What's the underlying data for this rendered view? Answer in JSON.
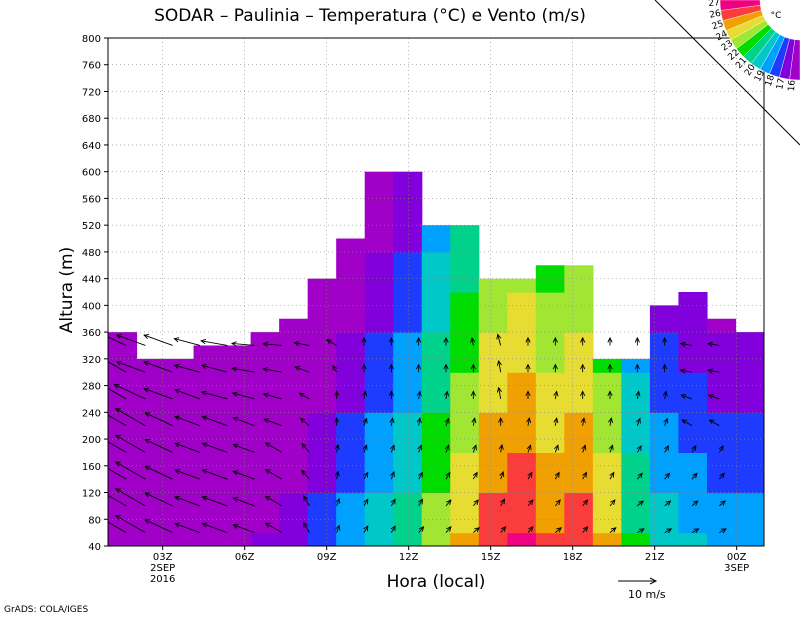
{
  "chart_data": {
    "type": "heatmap",
    "title": "SODAR – Paulinia – Temperatura (°C) e Vento (m/s)",
    "xlabel": "Hora (local)",
    "ylabel": "Altura (m)",
    "ylim": [
      40,
      800
    ],
    "xlim_hours": [
      0,
      24
    ],
    "y_ticks": [
      40,
      80,
      120,
      160,
      200,
      240,
      280,
      320,
      360,
      400,
      440,
      480,
      520,
      560,
      600,
      640,
      680,
      720,
      760,
      800
    ],
    "y_tick_labels": [
      "40",
      "80",
      "120",
      "160",
      "200",
      "240",
      "280",
      "320",
      "360",
      "400",
      "440",
      "480",
      "520",
      "560",
      "600",
      "640",
      "680",
      "720",
      "760",
      "800"
    ],
    "x_ticks": [
      {
        "hour": 2,
        "label": "03Z",
        "sub": [
          "2SEP",
          "2016"
        ]
      },
      {
        "hour": 5,
        "label": "06Z",
        "sub": []
      },
      {
        "hour": 8,
        "label": "09Z",
        "sub": []
      },
      {
        "hour": 11,
        "label": "12Z",
        "sub": []
      },
      {
        "hour": 14,
        "label": "15Z",
        "sub": []
      },
      {
        "hour": 17,
        "label": "18Z",
        "sub": []
      },
      {
        "hour": 20,
        "label": "21Z",
        "sub": []
      },
      {
        "hour": 23,
        "label": "00Z",
        "sub": [
          "3SEP"
        ]
      }
    ],
    "grid": true,
    "data_top_m": [
      360,
      320,
      320,
      340,
      340,
      360,
      380,
      440,
      500,
      600,
      600,
      520,
      520,
      440,
      440,
      460,
      460,
      320,
      320,
      400,
      420,
      380,
      360
    ],
    "temperature_columns": [
      16,
      16,
      16,
      16,
      16.5,
      17,
      17.5,
      18.5,
      19.5,
      20.5,
      21.5,
      23.5,
      25,
      26.5,
      27,
      26,
      26.5,
      25,
      22,
      20.5,
      20,
      19.5,
      19.5
    ],
    "vertical_temp_gradient": -0.008,
    "wind_vectors": [
      {
        "hour": 0.3,
        "speed": [
          9,
          9,
          9,
          9,
          9,
          9,
          9,
          9
        ],
        "dir": [
          300,
          300,
          300,
          300,
          300,
          300,
          300,
          295
        ]
      },
      {
        "hour": 1.0,
        "speed": [
          9,
          9,
          9,
          9,
          9,
          9,
          8,
          8
        ],
        "dir": [
          300,
          300,
          300,
          300,
          300,
          295,
          290,
          290
        ]
      },
      {
        "hour": 2.0,
        "speed": [
          8,
          8,
          8,
          8,
          8,
          8,
          8,
          8
        ],
        "dir": [
          295,
          295,
          295,
          295,
          295,
          290,
          290,
          290
        ]
      },
      {
        "hour": 3.0,
        "speed": [
          7,
          7,
          7,
          7,
          7,
          7,
          7,
          7
        ],
        "dir": [
          290,
          290,
          290,
          290,
          290,
          290,
          285,
          285
        ]
      },
      {
        "hour": 4.0,
        "speed": [
          7,
          7,
          7,
          7,
          7,
          7,
          7,
          7
        ],
        "dir": [
          290,
          290,
          290,
          290,
          290,
          285,
          285,
          280
        ]
      },
      {
        "hour": 5.0,
        "speed": [
          6,
          6,
          6,
          6,
          6,
          6,
          6,
          6
        ],
        "dir": [
          290,
          290,
          290,
          290,
          290,
          285,
          280,
          275
        ]
      },
      {
        "hour": 6.0,
        "speed": [
          5,
          5,
          5,
          5,
          5,
          5,
          5,
          5
        ],
        "dir": [
          300,
          300,
          300,
          300,
          290,
          285,
          280,
          275
        ]
      },
      {
        "hour": 7.0,
        "speed": [
          3,
          3,
          3,
          3,
          3,
          3,
          4,
          4
        ],
        "dir": [
          330,
          330,
          320,
          320,
          310,
          300,
          290,
          280
        ]
      },
      {
        "hour": 8.0,
        "speed": [
          2,
          2,
          2,
          2,
          2,
          2,
          2,
          3
        ],
        "dir": [
          20,
          20,
          10,
          10,
          0,
          0,
          330,
          300
        ]
      },
      {
        "hour": 9.0,
        "speed": [
          2,
          2,
          2,
          2,
          2,
          2,
          2,
          2
        ],
        "dir": [
          30,
          30,
          30,
          20,
          20,
          10,
          0,
          0
        ]
      },
      {
        "hour": 10.0,
        "speed": [
          2,
          2,
          2,
          2,
          2,
          2,
          2,
          2
        ],
        "dir": [
          30,
          30,
          20,
          20,
          10,
          0,
          0,
          0
        ]
      },
      {
        "hour": 11.0,
        "speed": [
          2,
          2,
          2,
          2,
          2,
          2,
          2,
          2
        ],
        "dir": [
          40,
          30,
          30,
          20,
          10,
          10,
          0,
          0
        ]
      },
      {
        "hour": 12.0,
        "speed": [
          2,
          2,
          2,
          2,
          2,
          2,
          2,
          2
        ],
        "dir": [
          40,
          40,
          30,
          20,
          20,
          10,
          0,
          0
        ]
      },
      {
        "hour": 13.0,
        "speed": [
          2,
          2,
          2,
          2,
          2,
          2,
          2,
          2
        ],
        "dir": [
          50,
          40,
          30,
          20,
          10,
          0,
          0,
          350
        ]
      },
      {
        "hour": 14.0,
        "speed": [
          2,
          2,
          2,
          2,
          2,
          3,
          3,
          3
        ],
        "dir": [
          40,
          30,
          20,
          10,
          0,
          350,
          350,
          345
        ]
      },
      {
        "hour": 15.0,
        "speed": [
          2,
          2,
          2,
          2,
          2,
          2,
          2,
          2
        ],
        "dir": [
          40,
          40,
          30,
          20,
          10,
          0,
          0,
          0
        ]
      },
      {
        "hour": 16.0,
        "speed": [
          2,
          2,
          2,
          2,
          2,
          2,
          2,
          2
        ],
        "dir": [
          50,
          40,
          30,
          20,
          10,
          10,
          0,
          0
        ]
      },
      {
        "hour": 17.0,
        "speed": [
          2,
          2,
          2,
          2,
          2,
          2,
          2,
          2
        ],
        "dir": [
          40,
          40,
          30,
          20,
          10,
          0,
          0,
          0
        ]
      },
      {
        "hour": 18.0,
        "speed": [
          2,
          2,
          2,
          2,
          2,
          2,
          2,
          2
        ],
        "dir": [
          50,
          40,
          30,
          20,
          10,
          0,
          0,
          0
        ]
      },
      {
        "hour": 19.0,
        "speed": [
          2,
          2,
          2,
          2,
          2,
          2,
          2,
          2
        ],
        "dir": [
          60,
          50,
          40,
          30,
          20,
          10,
          0,
          0
        ]
      },
      {
        "hour": 20.0,
        "speed": [
          2,
          2,
          2,
          2,
          2,
          2,
          2,
          2
        ],
        "dir": [
          60,
          50,
          40,
          30,
          20,
          10,
          0,
          0
        ]
      },
      {
        "hour": 21.0,
        "speed": [
          2,
          2,
          2,
          2,
          3,
          3,
          3,
          3
        ],
        "dir": [
          60,
          50,
          40,
          30,
          300,
          290,
          280,
          280
        ]
      },
      {
        "hour": 22.0,
        "speed": [
          2,
          2,
          2,
          2,
          3,
          3,
          3,
          3
        ],
        "dir": [
          60,
          50,
          40,
          30,
          300,
          290,
          280,
          280
        ]
      }
    ],
    "wind_levels_m": [
      60,
      100,
      140,
      180,
      220,
      260,
      300,
      340
    ],
    "reference_vector": {
      "speed": 10,
      "label": "10 m/s"
    },
    "colorbar": {
      "unit": "°C",
      "labels": [
        "16",
        "17",
        "18",
        "19",
        "20",
        "21",
        "22",
        "23",
        "24",
        "25",
        "26",
        "27"
      ],
      "colors": [
        "#a000c8",
        "#8200dc",
        "#1e3cff",
        "#00a0ff",
        "#00c8c8",
        "#00d28c",
        "#00dc00",
        "#a0e632",
        "#e6dc32",
        "#f0a000",
        "#fa3c3c",
        "#f00082"
      ]
    },
    "source": "GrADS: COLA/IGES"
  }
}
